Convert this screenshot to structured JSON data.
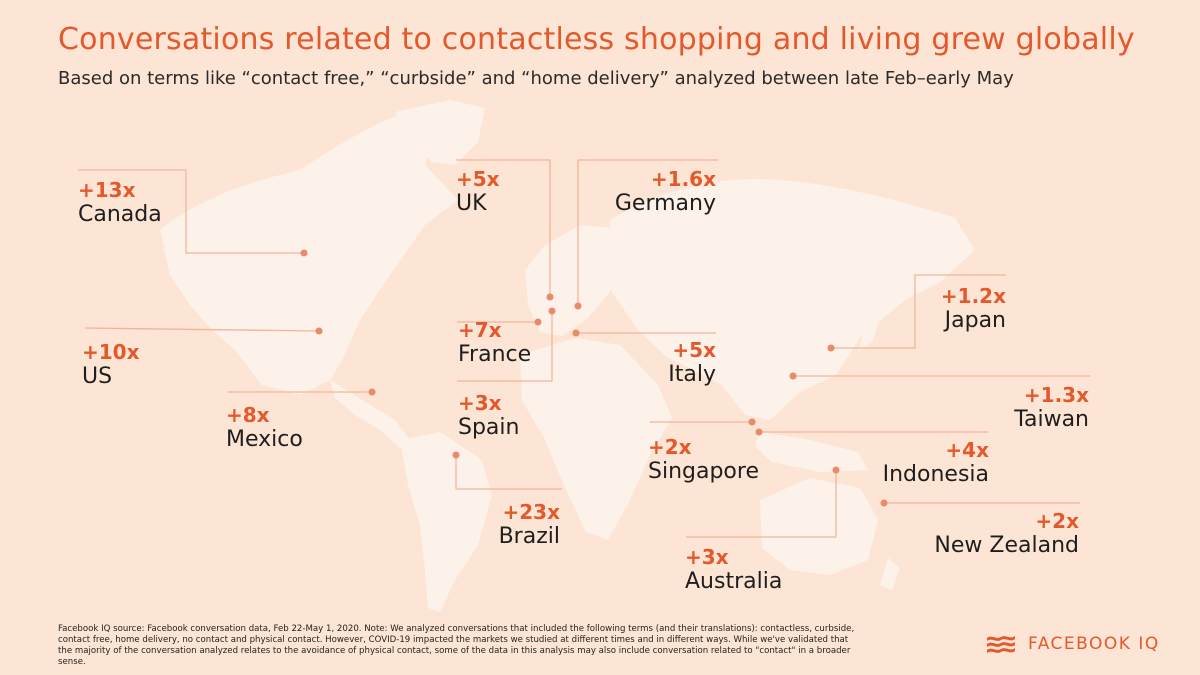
{
  "header": {
    "title": "Conversations related to contactless shopping and living grew globally",
    "subtitle": "Based on terms like “contact free,” “curbside” and “home delivery” analyzed between late Feb–early May"
  },
  "colors": {
    "background": "#fce5d5",
    "land": "#fdf2ea",
    "accent": "#e3592c",
    "leader_line": "#f3b49b",
    "marker": "#e88a6c"
  },
  "callouts": [
    {
      "country": "Canada",
      "multiplier": "+13x"
    },
    {
      "country": "US",
      "multiplier": "+10x"
    },
    {
      "country": "Mexico",
      "multiplier": "+8x"
    },
    {
      "country": "UK",
      "multiplier": "+5x"
    },
    {
      "country": "Germany",
      "multiplier": "+1.6x"
    },
    {
      "country": "France",
      "multiplier": "+7x"
    },
    {
      "country": "Spain",
      "multiplier": "+3x"
    },
    {
      "country": "Italy",
      "multiplier": "+5x"
    },
    {
      "country": "Brazil",
      "multiplier": "+23x"
    },
    {
      "country": "Singapore",
      "multiplier": "+2x"
    },
    {
      "country": "Australia",
      "multiplier": "+3x"
    },
    {
      "country": "Japan",
      "multiplier": "+1.2x"
    },
    {
      "country": "Taiwan",
      "multiplier": "+1.3x"
    },
    {
      "country": "Indonesia",
      "multiplier": "+4x"
    },
    {
      "country": "New Zealand",
      "multiplier": "+2x"
    }
  ],
  "footnote": "Facebook IQ source: Facebook conversation data, Feb 22-May 1, 2020. Note: We analyzed conversations that included the following terms (and their translations): contactless, curbside, contact free, home delivery, no contact and physical contact. However, COVID-19 impacted the markets we studied at different times and in different ways. While we've validated that the majority of the conversation analyzed relates to the avoidance of physical contact, some of the data in this analysis may also include conversation related to \"contact\" in a broader sense.",
  "brand": {
    "name": "FACEBOOK IQ",
    "icon": "facebook-iq-logo-icon"
  }
}
